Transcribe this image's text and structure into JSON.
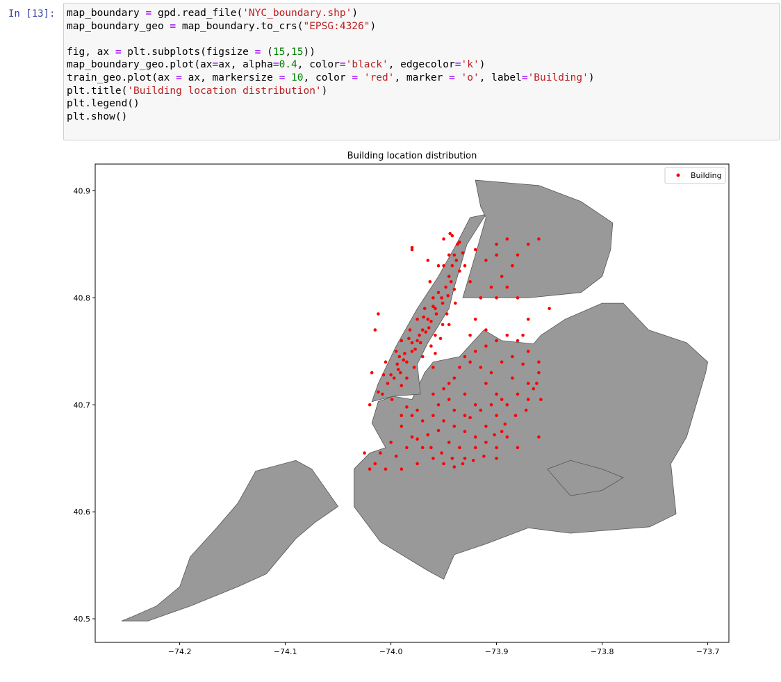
{
  "prompt": "In [13]:",
  "code_lines": [
    [
      {
        "t": "map_boundary "
      },
      {
        "t": "=",
        "c": "op"
      },
      {
        "t": " gpd.read_file("
      },
      {
        "t": "'NYC_boundary.shp'",
        "c": "str"
      },
      {
        "t": ")"
      }
    ],
    [
      {
        "t": "map_boundary_geo "
      },
      {
        "t": "=",
        "c": "op"
      },
      {
        "t": " map_boundary.to_crs("
      },
      {
        "t": "\"EPSG:4326\"",
        "c": "str"
      },
      {
        "t": ")"
      }
    ],
    [],
    [
      {
        "t": "fig, ax "
      },
      {
        "t": "=",
        "c": "op"
      },
      {
        "t": " plt.subplots(figsize "
      },
      {
        "t": "=",
        "c": "op"
      },
      {
        "t": " ("
      },
      {
        "t": "15",
        "c": "num"
      },
      {
        "t": ","
      },
      {
        "t": "15",
        "c": "num"
      },
      {
        "t": "))"
      }
    ],
    [
      {
        "t": "map_boundary_geo.plot(ax"
      },
      {
        "t": "=",
        "c": "op"
      },
      {
        "t": "ax, alpha"
      },
      {
        "t": "=",
        "c": "op"
      },
      {
        "t": "0.4",
        "c": "num"
      },
      {
        "t": ", color"
      },
      {
        "t": "=",
        "c": "op"
      },
      {
        "t": "'black'",
        "c": "str"
      },
      {
        "t": ", edgecolor"
      },
      {
        "t": "=",
        "c": "op"
      },
      {
        "t": "'k'",
        "c": "str"
      },
      {
        "t": ")"
      }
    ],
    [
      {
        "t": "train_geo.plot(ax "
      },
      {
        "t": "=",
        "c": "op"
      },
      {
        "t": " ax, markersize "
      },
      {
        "t": "=",
        "c": "op"
      },
      {
        "t": " "
      },
      {
        "t": "10",
        "c": "num"
      },
      {
        "t": ", color "
      },
      {
        "t": "=",
        "c": "op"
      },
      {
        "t": " "
      },
      {
        "t": "'red'",
        "c": "str"
      },
      {
        "t": ", marker "
      },
      {
        "t": "=",
        "c": "op"
      },
      {
        "t": " "
      },
      {
        "t": "'o'",
        "c": "str"
      },
      {
        "t": ", label"
      },
      {
        "t": "=",
        "c": "op"
      },
      {
        "t": "'Building'",
        "c": "str"
      },
      {
        "t": ")"
      }
    ],
    [
      {
        "t": "plt.title("
      },
      {
        "t": "'Building location distribution'",
        "c": "str"
      },
      {
        "t": ")"
      }
    ],
    [
      {
        "t": "plt.legend()"
      }
    ],
    [
      {
        "t": "plt.show()"
      }
    ]
  ],
  "chart_data": {
    "type": "scatter",
    "title": "Building location distribution",
    "xlabel": "",
    "ylabel": "",
    "xlim": [
      -74.28,
      -73.68
    ],
    "ylim": [
      40.478,
      40.925
    ],
    "xticks": [
      -74.2,
      -74.1,
      -74.0,
      -73.9,
      -73.8,
      -73.7
    ],
    "xtick_labels": [
      "−74.2",
      "−74.1",
      "−74.0",
      "−73.9",
      "−73.8",
      "−73.7"
    ],
    "yticks": [
      40.5,
      40.6,
      40.7,
      40.8,
      40.9
    ],
    "ytick_labels": [
      "40.5",
      "40.6",
      "40.7",
      "40.8",
      "40.9"
    ],
    "legend": {
      "label": "Building",
      "position": "top-right"
    },
    "grid": false,
    "colors": {
      "boundary_fill": "#999999",
      "boundary_edge": "#555555",
      "points": "#ff0000"
    },
    "boundary": {
      "alpha": 0.4,
      "polygons": [
        [
          [
            -74.255,
            40.498
          ],
          [
            -74.245,
            40.502
          ],
          [
            -74.222,
            40.512
          ],
          [
            -74.2,
            40.53
          ],
          [
            -74.19,
            40.558
          ],
          [
            -74.165,
            40.585
          ],
          [
            -74.145,
            40.608
          ],
          [
            -74.128,
            40.638
          ],
          [
            -74.09,
            40.648
          ],
          [
            -74.075,
            40.64
          ],
          [
            -74.05,
            40.605
          ],
          [
            -74.072,
            40.59
          ],
          [
            -74.09,
            40.575
          ],
          [
            -74.118,
            40.542
          ],
          [
            -74.145,
            40.53
          ],
          [
            -74.19,
            40.512
          ],
          [
            -74.23,
            40.498
          ]
        ],
        [
          [
            -74.035,
            40.64
          ],
          [
            -74.02,
            40.655
          ],
          [
            -74.005,
            40.66
          ],
          [
            -74.018,
            40.683
          ],
          [
            -74.012,
            40.703
          ],
          [
            -73.998,
            40.708
          ],
          [
            -73.98,
            40.705
          ],
          [
            -73.968,
            40.73
          ],
          [
            -73.96,
            40.74
          ],
          [
            -73.935,
            40.745
          ],
          [
            -73.912,
            40.77
          ],
          [
            -73.895,
            40.76
          ],
          [
            -73.865,
            40.757
          ],
          [
            -73.858,
            40.765
          ],
          [
            -73.835,
            40.78
          ],
          [
            -73.8,
            40.795
          ],
          [
            -73.78,
            40.795
          ],
          [
            -73.756,
            40.77
          ],
          [
            -73.72,
            40.758
          ],
          [
            -73.7,
            40.74
          ],
          [
            -73.702,
            40.73
          ],
          [
            -73.72,
            40.67
          ],
          [
            -73.735,
            40.645
          ],
          [
            -73.73,
            40.598
          ],
          [
            -73.755,
            40.586
          ],
          [
            -73.83,
            40.58
          ],
          [
            -73.87,
            40.585
          ],
          [
            -73.91,
            40.57
          ],
          [
            -73.94,
            40.56
          ],
          [
            -73.95,
            40.537
          ],
          [
            -73.965,
            40.545
          ],
          [
            -74.01,
            40.572
          ],
          [
            -74.035,
            40.605
          ]
        ],
        [
          [
            -74.018,
            40.703
          ],
          [
            -74.012,
            40.72
          ],
          [
            -73.995,
            40.755
          ],
          [
            -73.975,
            40.79
          ],
          [
            -73.955,
            40.82
          ],
          [
            -73.938,
            40.85
          ],
          [
            -73.925,
            40.875
          ],
          [
            -73.91,
            40.878
          ],
          [
            -73.928,
            40.85
          ],
          [
            -73.94,
            40.81
          ],
          [
            -73.945,
            40.79
          ],
          [
            -73.965,
            40.758
          ],
          [
            -73.975,
            40.738
          ],
          [
            -73.972,
            40.71
          ],
          [
            -73.998,
            40.708
          ]
        ],
        [
          [
            -73.932,
            40.8
          ],
          [
            -73.926,
            40.82
          ],
          [
            -73.92,
            40.84
          ],
          [
            -73.91,
            40.875
          ],
          [
            -73.915,
            40.885
          ],
          [
            -73.92,
            40.91
          ],
          [
            -73.86,
            40.905
          ],
          [
            -73.82,
            40.89
          ],
          [
            -73.79,
            40.87
          ],
          [
            -73.792,
            40.845
          ],
          [
            -73.8,
            40.82
          ],
          [
            -73.82,
            40.805
          ],
          [
            -73.87,
            40.8
          ],
          [
            -73.9,
            40.8
          ]
        ],
        [
          [
            -73.852,
            40.64
          ],
          [
            -73.83,
            40.648
          ],
          [
            -73.8,
            40.64
          ],
          [
            -73.78,
            40.632
          ],
          [
            -73.8,
            40.62
          ],
          [
            -73.83,
            40.615
          ]
        ]
      ]
    },
    "points": [
      [
        -74.003,
        40.72
      ],
      [
        -73.997,
        40.725
      ],
      [
        -73.991,
        40.73
      ],
      [
        -73.985,
        40.74
      ],
      [
        -73.98,
        40.75
      ],
      [
        -73.975,
        40.76
      ],
      [
        -73.97,
        40.77
      ],
      [
        -73.965,
        40.78
      ],
      [
        -73.958,
        40.79
      ],
      [
        -73.952,
        40.8
      ],
      [
        -73.948,
        40.81
      ],
      [
        -73.945,
        40.82
      ],
      [
        -73.942,
        40.83
      ],
      [
        -73.94,
        40.84
      ],
      [
        -73.937,
        40.85
      ],
      [
        -74.008,
        40.71
      ],
      [
        -74.005,
        40.74
      ],
      [
        -73.995,
        40.75
      ],
      [
        -73.99,
        40.76
      ],
      [
        -73.982,
        40.77
      ],
      [
        -73.975,
        40.78
      ],
      [
        -73.968,
        40.79
      ],
      [
        -73.96,
        40.8
      ],
      [
        -73.955,
        40.805
      ],
      [
        -73.95,
        40.83
      ],
      [
        -73.945,
        40.84
      ],
      [
        -73.985,
        40.725
      ],
      [
        -73.978,
        40.735
      ],
      [
        -73.97,
        40.745
      ],
      [
        -73.962,
        40.755
      ],
      [
        -73.958,
        40.765
      ],
      [
        -73.951,
        40.775
      ],
      [
        -73.947,
        40.785
      ],
      [
        -73.999,
        40.705
      ],
      [
        -74.012,
        40.712
      ],
      [
        -73.99,
        40.718
      ],
      [
        -73.96,
        40.735
      ],
      [
        -73.963,
        40.815
      ],
      [
        -73.935,
        40.825
      ],
      [
        -73.932,
        40.842
      ],
      [
        -74.015,
        40.77
      ],
      [
        -74.012,
        40.785
      ],
      [
        -73.98,
        40.845
      ],
      [
        -73.973,
        40.765
      ],
      [
        -73.988,
        40.742
      ],
      [
        -73.993,
        40.733
      ],
      [
        -73.958,
        40.748
      ],
      [
        -73.953,
        40.762
      ],
      [
        -73.945,
        40.775
      ],
      [
        -73.939,
        40.795
      ],
      [
        -73.94,
        40.808
      ],
      [
        -73.992,
        40.745
      ],
      [
        -73.977,
        40.752
      ],
      [
        -73.983,
        40.762
      ],
      [
        -73.964,
        40.772
      ],
      [
        -73.969,
        40.782
      ],
      [
        -73.96,
        40.792
      ],
      [
        -73.955,
        40.83
      ],
      [
        -73.95,
        40.855
      ],
      [
        -73.944,
        40.86
      ],
      [
        -74.0,
        40.728
      ],
      [
        -74.007,
        40.728
      ],
      [
        -73.994,
        40.738
      ],
      [
        -73.987,
        40.748
      ],
      [
        -73.98,
        40.758
      ],
      [
        -73.972,
        40.758
      ],
      [
        -73.967,
        40.768
      ],
      [
        -73.962,
        40.778
      ],
      [
        -73.957,
        40.785
      ],
      [
        -73.951,
        40.795
      ],
      [
        -73.946,
        40.802
      ],
      [
        -73.943,
        40.815
      ],
      [
        -73.938,
        40.835
      ],
      [
        -73.935,
        40.852
      ],
      [
        -73.942,
        40.858
      ],
      [
        -73.985,
        40.698
      ],
      [
        -73.975,
        40.695
      ],
      [
        -73.96,
        40.69
      ],
      [
        -73.95,
        40.685
      ],
      [
        -73.94,
        40.68
      ],
      [
        -73.93,
        40.675
      ],
      [
        -73.92,
        40.67
      ],
      [
        -73.91,
        40.665
      ],
      [
        -73.9,
        40.66
      ],
      [
        -73.99,
        40.68
      ],
      [
        -73.98,
        40.67
      ],
      [
        -73.97,
        40.66
      ],
      [
        -73.96,
        40.65
      ],
      [
        -73.95,
        40.645
      ],
      [
        -73.94,
        40.642
      ],
      [
        -73.93,
        40.65
      ],
      [
        -73.92,
        40.66
      ],
      [
        -73.91,
        40.68
      ],
      [
        -73.9,
        40.69
      ],
      [
        -73.89,
        40.7
      ],
      [
        -73.88,
        40.71
      ],
      [
        -73.87,
        40.72
      ],
      [
        -73.86,
        40.73
      ],
      [
        -74.0,
        40.665
      ],
      [
        -74.01,
        40.655
      ],
      [
        -74.015,
        40.645
      ],
      [
        -74.005,
        40.64
      ],
      [
        -73.995,
        40.652
      ],
      [
        -73.985,
        40.66
      ],
      [
        -73.975,
        40.668
      ],
      [
        -73.965,
        40.672
      ],
      [
        -73.955,
        40.676
      ],
      [
        -73.945,
        40.665
      ],
      [
        -73.935,
        40.66
      ],
      [
        -73.925,
        40.688
      ],
      [
        -73.915,
        40.695
      ],
      [
        -73.905,
        40.7
      ],
      [
        -73.895,
        40.705
      ],
      [
        -73.97,
        40.685
      ],
      [
        -73.98,
        40.69
      ],
      [
        -73.99,
        40.69
      ],
      [
        -73.955,
        40.7
      ],
      [
        -73.945,
        40.705
      ],
      [
        -73.94,
        40.695
      ],
      [
        -73.93,
        40.69
      ],
      [
        -73.962,
        40.66
      ],
      [
        -73.952,
        40.655
      ],
      [
        -73.942,
        40.65
      ],
      [
        -73.932,
        40.645
      ],
      [
        -73.922,
        40.648
      ],
      [
        -73.912,
        40.652
      ],
      [
        -73.902,
        40.672
      ],
      [
        -73.892,
        40.682
      ],
      [
        -73.882,
        40.69
      ],
      [
        -73.872,
        40.695
      ],
      [
        -73.945,
        40.72
      ],
      [
        -73.94,
        40.725
      ],
      [
        -73.935,
        40.735
      ],
      [
        -73.93,
        40.745
      ],
      [
        -73.92,
        40.75
      ],
      [
        -73.91,
        40.755
      ],
      [
        -73.9,
        40.76
      ],
      [
        -73.89,
        40.765
      ],
      [
        -73.88,
        40.76
      ],
      [
        -73.87,
        40.75
      ],
      [
        -73.86,
        40.74
      ],
      [
        -73.925,
        40.74
      ],
      [
        -73.915,
        40.735
      ],
      [
        -73.905,
        40.73
      ],
      [
        -73.895,
        40.74
      ],
      [
        -73.885,
        40.745
      ],
      [
        -73.875,
        40.738
      ],
      [
        -73.865,
        40.715
      ],
      [
        -73.858,
        40.705
      ],
      [
        -73.862,
        40.72
      ],
      [
        -73.91,
        40.72
      ],
      [
        -73.9,
        40.71
      ],
      [
        -73.93,
        40.71
      ],
      [
        -73.92,
        40.7
      ],
      [
        -73.96,
        40.71
      ],
      [
        -73.95,
        40.715
      ],
      [
        -73.915,
        40.8
      ],
      [
        -73.905,
        40.81
      ],
      [
        -73.895,
        40.82
      ],
      [
        -73.885,
        40.83
      ],
      [
        -73.9,
        40.85
      ],
      [
        -73.89,
        40.855
      ],
      [
        -73.88,
        40.84
      ],
      [
        -73.87,
        40.85
      ],
      [
        -73.86,
        40.855
      ],
      [
        -73.92,
        40.845
      ],
      [
        -73.91,
        40.835
      ],
      [
        -73.9,
        40.84
      ],
      [
        -73.93,
        40.83
      ],
      [
        -73.925,
        40.815
      ],
      [
        -73.87,
        40.78
      ],
      [
        -73.85,
        40.79
      ],
      [
        -73.98,
        40.847
      ],
      [
        -73.965,
        40.835
      ],
      [
        -74.02,
        40.64
      ],
      [
        -74.025,
        40.655
      ],
      [
        -74.02,
        40.7
      ],
      [
        -74.018,
        40.73
      ],
      [
        -73.99,
        40.64
      ],
      [
        -73.975,
        40.645
      ],
      [
        -73.88,
        40.66
      ],
      [
        -73.86,
        40.67
      ],
      [
        -73.895,
        40.675
      ],
      [
        -73.9,
        40.65
      ],
      [
        -73.89,
        40.67
      ],
      [
        -73.92,
        40.78
      ],
      [
        -73.91,
        40.77
      ],
      [
        -73.925,
        40.765
      ],
      [
        -73.875,
        40.765
      ],
      [
        -73.885,
        40.725
      ],
      [
        -73.87,
        40.705
      ],
      [
        -73.9,
        40.8
      ],
      [
        -73.89,
        40.81
      ],
      [
        -73.88,
        40.8
      ]
    ]
  }
}
